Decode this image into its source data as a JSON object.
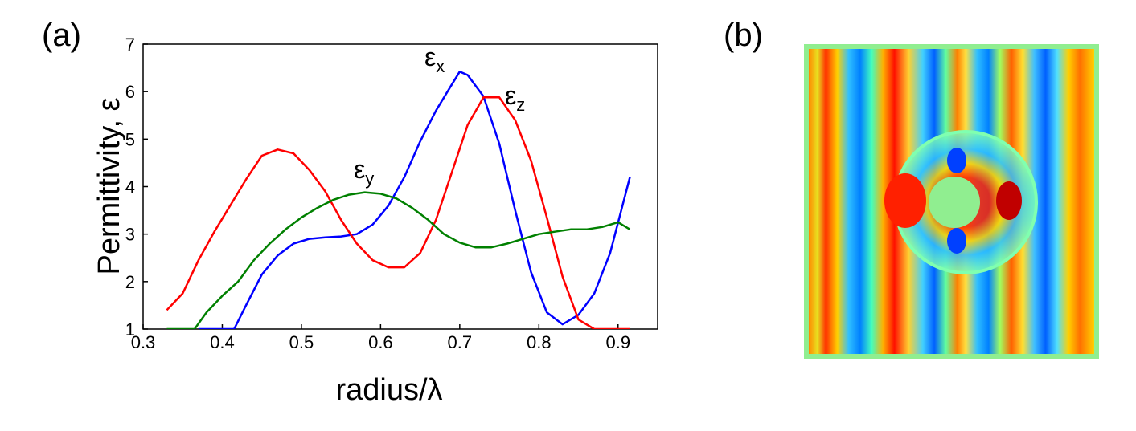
{
  "panels": {
    "a_label": "(a)",
    "b_label": "(b)"
  },
  "chart_data": {
    "type": "line",
    "xlabel": "radius/λ",
    "ylabel": "Permittivity, ε",
    "xlim": [
      0.3,
      0.95
    ],
    "ylim": [
      1,
      7
    ],
    "xticks": [
      0.3,
      0.4,
      0.5,
      0.6,
      0.7,
      0.8,
      0.9
    ],
    "xtick_labels": [
      "0.3",
      "0.4",
      "0.5",
      "0.6",
      "0.7",
      "0.8",
      "0.9"
    ],
    "yticks": [
      1,
      2,
      3,
      4,
      5,
      6,
      7
    ],
    "ytick_labels": [
      "1",
      "2",
      "3",
      "4",
      "5",
      "6",
      "7"
    ],
    "grid": false,
    "series": [
      {
        "name": "εx",
        "symbol": "ε",
        "subscript": "x",
        "color": "#0000ff",
        "x": [
          0.37,
          0.415,
          0.43,
          0.45,
          0.47,
          0.49,
          0.51,
          0.53,
          0.55,
          0.57,
          0.59,
          0.61,
          0.63,
          0.65,
          0.67,
          0.69,
          0.7,
          0.71,
          0.73,
          0.75,
          0.77,
          0.79,
          0.81,
          0.83,
          0.85,
          0.87,
          0.89,
          0.915
        ],
        "y": [
          1.0,
          1.0,
          1.5,
          2.15,
          2.55,
          2.8,
          2.9,
          2.93,
          2.95,
          3.0,
          3.2,
          3.6,
          4.2,
          4.95,
          5.6,
          6.15,
          6.42,
          6.35,
          5.9,
          4.9,
          3.5,
          2.2,
          1.35,
          1.1,
          1.3,
          1.75,
          2.6,
          4.2
        ]
      },
      {
        "name": "εz",
        "symbol": "ε",
        "subscript": "z",
        "color": "#ff0000",
        "x": [
          0.33,
          0.35,
          0.37,
          0.39,
          0.41,
          0.43,
          0.45,
          0.47,
          0.49,
          0.51,
          0.53,
          0.55,
          0.57,
          0.59,
          0.61,
          0.63,
          0.65,
          0.67,
          0.69,
          0.71,
          0.73,
          0.75,
          0.77,
          0.79,
          0.81,
          0.83,
          0.85,
          0.87,
          0.9,
          0.915
        ],
        "y": [
          1.4,
          1.75,
          2.45,
          3.05,
          3.6,
          4.15,
          4.65,
          4.78,
          4.7,
          4.35,
          3.9,
          3.3,
          2.8,
          2.45,
          2.3,
          2.3,
          2.6,
          3.3,
          4.3,
          5.3,
          5.88,
          5.88,
          5.4,
          4.55,
          3.35,
          2.1,
          1.2,
          1.0,
          1.0,
          1.0
        ]
      },
      {
        "name": "εy",
        "symbol": "ε",
        "subscript": "y",
        "color": "#008000",
        "x": [
          0.33,
          0.365,
          0.38,
          0.4,
          0.42,
          0.44,
          0.46,
          0.48,
          0.5,
          0.52,
          0.54,
          0.56,
          0.58,
          0.6,
          0.62,
          0.64,
          0.66,
          0.68,
          0.7,
          0.72,
          0.74,
          0.76,
          0.78,
          0.8,
          0.82,
          0.84,
          0.86,
          0.88,
          0.9,
          0.915
        ],
        "y": [
          1.0,
          1.0,
          1.35,
          1.7,
          2.0,
          2.45,
          2.8,
          3.1,
          3.35,
          3.55,
          3.72,
          3.83,
          3.88,
          3.85,
          3.75,
          3.55,
          3.3,
          3.0,
          2.82,
          2.72,
          2.72,
          2.8,
          2.9,
          3.0,
          3.05,
          3.1,
          3.1,
          3.15,
          3.25,
          3.1
        ]
      }
    ]
  }
}
